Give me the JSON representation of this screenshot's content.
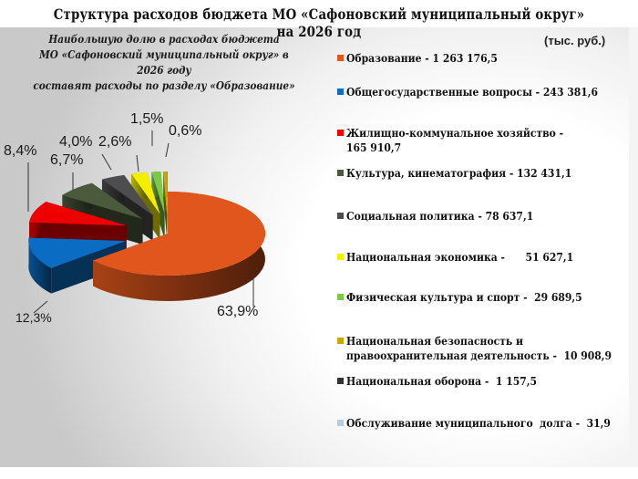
{
  "title": "Структура расходов бюджета  МО «Сафоновский муниципальный округ» на  2026 год",
  "subtitle_lines": [
    "Наибольшую долю в расходах бюджета",
    "МО «Сафоновский муниципальный округ» в 2026 году",
    "составят расходы по разделу «Образование»"
  ],
  "units": "(тыс. руб.)",
  "chart_data": {
    "type": "pie",
    "style": "3d-exploded",
    "categories": [
      "Образование",
      "Общегосударственные вопросы",
      "Жилищно-коммунальное хозяйство",
      "Культура, кинематография",
      "Социальная политика",
      "Национальная экономика",
      "Физическая культура и спорт",
      "Национальная безопасность и правоохранительная деятельность",
      "Национальная оборона",
      "Обслуживание муниципального долга"
    ],
    "values": [
      1263176.5,
      243381.6,
      165910.7,
      132431.1,
      78637.1,
      51627.1,
      29689.5,
      10908.9,
      1157.5,
      31.9
    ],
    "colors": [
      "#e0561c",
      "#0a6cc2",
      "#ee0000",
      "#4b5a3c",
      "#4d4d4f",
      "#f4ee00",
      "#7cc94a",
      "#c9a800",
      "#333333",
      "#b8cddb"
    ],
    "legend_labels": [
      "Образование - 1 263 176,5",
      "Общегосударственные вопросы - 243 381,6",
      "Жилищно-коммунальное хозяйство -\n165 910,7",
      "Культура, кинематография - 132 431,1",
      "Социальная политика - 78 637,1",
      "Национальная экономика -      51 627,1",
      "Физическая культура и спорт -  29 689,5",
      "Национальная безопасность и\nправоохранительная деятельность -  10 908,9",
      "Национальная оборона -  1 157,5",
      "Обслуживание муниципального  долга -  31,9"
    ],
    "percent_labels": [
      "63,9%",
      "12,3%",
      "8,4%",
      "6,7%",
      "4,0%",
      "2,6%",
      "1,5%",
      "0,6%"
    ],
    "legend_position": "right"
  }
}
